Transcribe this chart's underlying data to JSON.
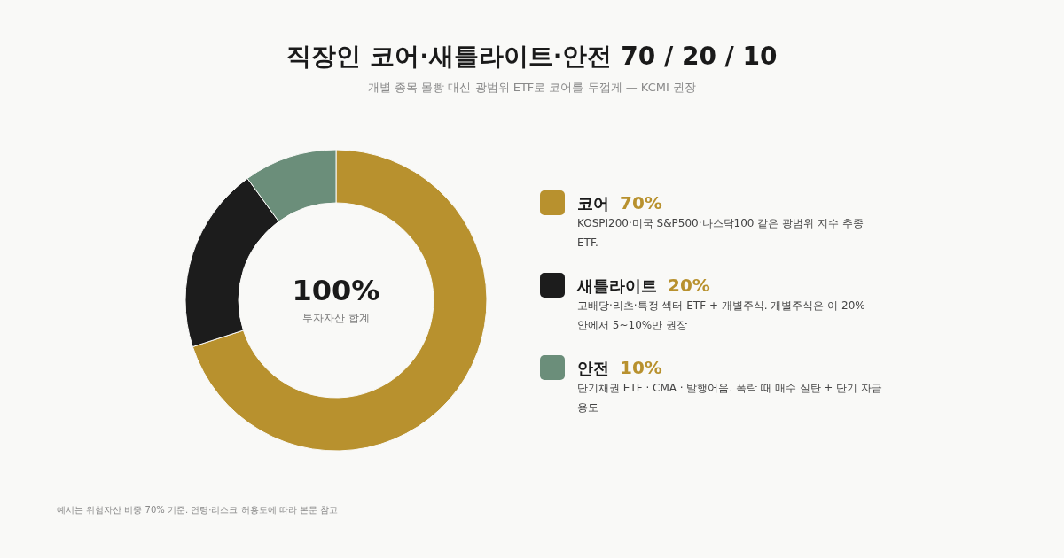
{
  "chart_data": {
    "type": "donut",
    "title": "직장인 코어·새틀라이트·안전 70 / 20 / 10",
    "subtitle": "개별 종목 몰빵 대신 광범위 ETF로 코어를 두껍게 — KCMI 권장",
    "categories": [
      "코어",
      "새틀라이트",
      "안전"
    ],
    "values": [
      70,
      20,
      10
    ],
    "colors": [
      "#b8912e",
      "#1c1c1c",
      "#6b8e7a"
    ],
    "value_labels": [
      "70%",
      "20%",
      "10%"
    ],
    "legend": "right",
    "annotations": [
      "100%",
      "투자자산 합계",
      "KOSPI200·미국 S&P500·나스닥100 같은 광범위 지수 추종 ETF.",
      "고배당·리츠·특정 섹터 ETF + 개별주식. 개별주식은 이 20% 안에서 5~10%만 권장",
      "단기채권 ETF · CMA · 발행어음. 폭락 때 매수 실탄 + 단기 자금 용도",
      "예시는 위험자산 비중 70% 기준. 연령·리스크 허용도에 따라 본문 참고"
    ]
  }
}
